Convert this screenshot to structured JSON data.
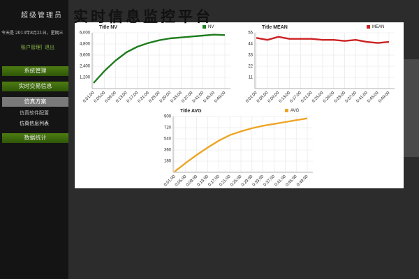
{
  "page": {
    "header": {
      "title": "实时信息监控平台"
    },
    "sidebar": {
      "user": "超级管理员",
      "date": "今天是 2013年8月21日，星期三",
      "account": "账户管理",
      "logout": "退出",
      "menu": [
        "系统管理",
        "实时交易信息",
        "仿真方案",
        "仿真软件配置",
        "仿真信息列表",
        "数据统计"
      ]
    }
  },
  "chart_data": [
    {
      "type": "line",
      "title": "Title NV",
      "categories": [
        "0:01:00",
        "0:05:00",
        "0:09:00",
        "0:13:00",
        "0:17:00",
        "0:21:00",
        "0:25:00",
        "0:29:00",
        "0:33:00",
        "0:37:00",
        "0:41:00",
        "0:45:00",
        "0:49:00"
      ],
      "series": [
        {
          "name": "NV",
          "color": "#1e7d1e",
          "values": [
            600,
            1900,
            3000,
            3900,
            4500,
            4900,
            5200,
            5400,
            5500,
            5600,
            5700,
            5800,
            5750
          ]
        }
      ],
      "ylim": [
        0,
        6000
      ],
      "yticks": [
        {
          "value": 1200,
          "label": "1,200"
        },
        {
          "value": 2400,
          "label": "2,400"
        },
        {
          "value": 3600,
          "label": "3,600"
        },
        {
          "value": 4800,
          "label": "4,800"
        },
        {
          "value": 6000,
          "label": "6,000"
        }
      ],
      "grid": true,
      "legend": "top-right"
    },
    {
      "type": "line",
      "title": "Title MEAN",
      "categories": [
        "0:01:00",
        "0:05:00",
        "0:09:00",
        "0:13:00",
        "0:17:00",
        "0:21:00",
        "0:25:00",
        "0:29:00",
        "0:33:00",
        "0:37:00",
        "0:41:00",
        "0:45:00",
        "0:49:00"
      ],
      "series": [
        {
          "name": "MEAN",
          "color": "#cc2222",
          "values": [
            50,
            48,
            51,
            49,
            49,
            49,
            48,
            48,
            47,
            48,
            46,
            45,
            46
          ]
        }
      ],
      "ylim": [
        0,
        55
      ],
      "yticks": [
        11,
        22,
        33,
        44,
        55
      ],
      "grid": true,
      "legend": "top-right"
    },
    {
      "type": "line",
      "title": "Title AVG",
      "categories": [
        "0:01:00",
        "0:05:00",
        "0:09:00",
        "0:13:00",
        "0:17:00",
        "0:21:00",
        "0:25:00",
        "0:29:00",
        "0:33:00",
        "0:37:00",
        "0:41:00",
        "0:45:00",
        "0:49:00"
      ],
      "series": [
        {
          "name": "AVG",
          "color": "#eea526",
          "values": [
            10,
            150,
            280,
            400,
            510,
            600,
            660,
            710,
            750,
            780,
            810,
            840,
            870
          ]
        }
      ],
      "ylim": [
        0,
        900
      ],
      "yticks": [
        180,
        360,
        540,
        720,
        900
      ],
      "grid": true,
      "legend": "top-right"
    }
  ]
}
